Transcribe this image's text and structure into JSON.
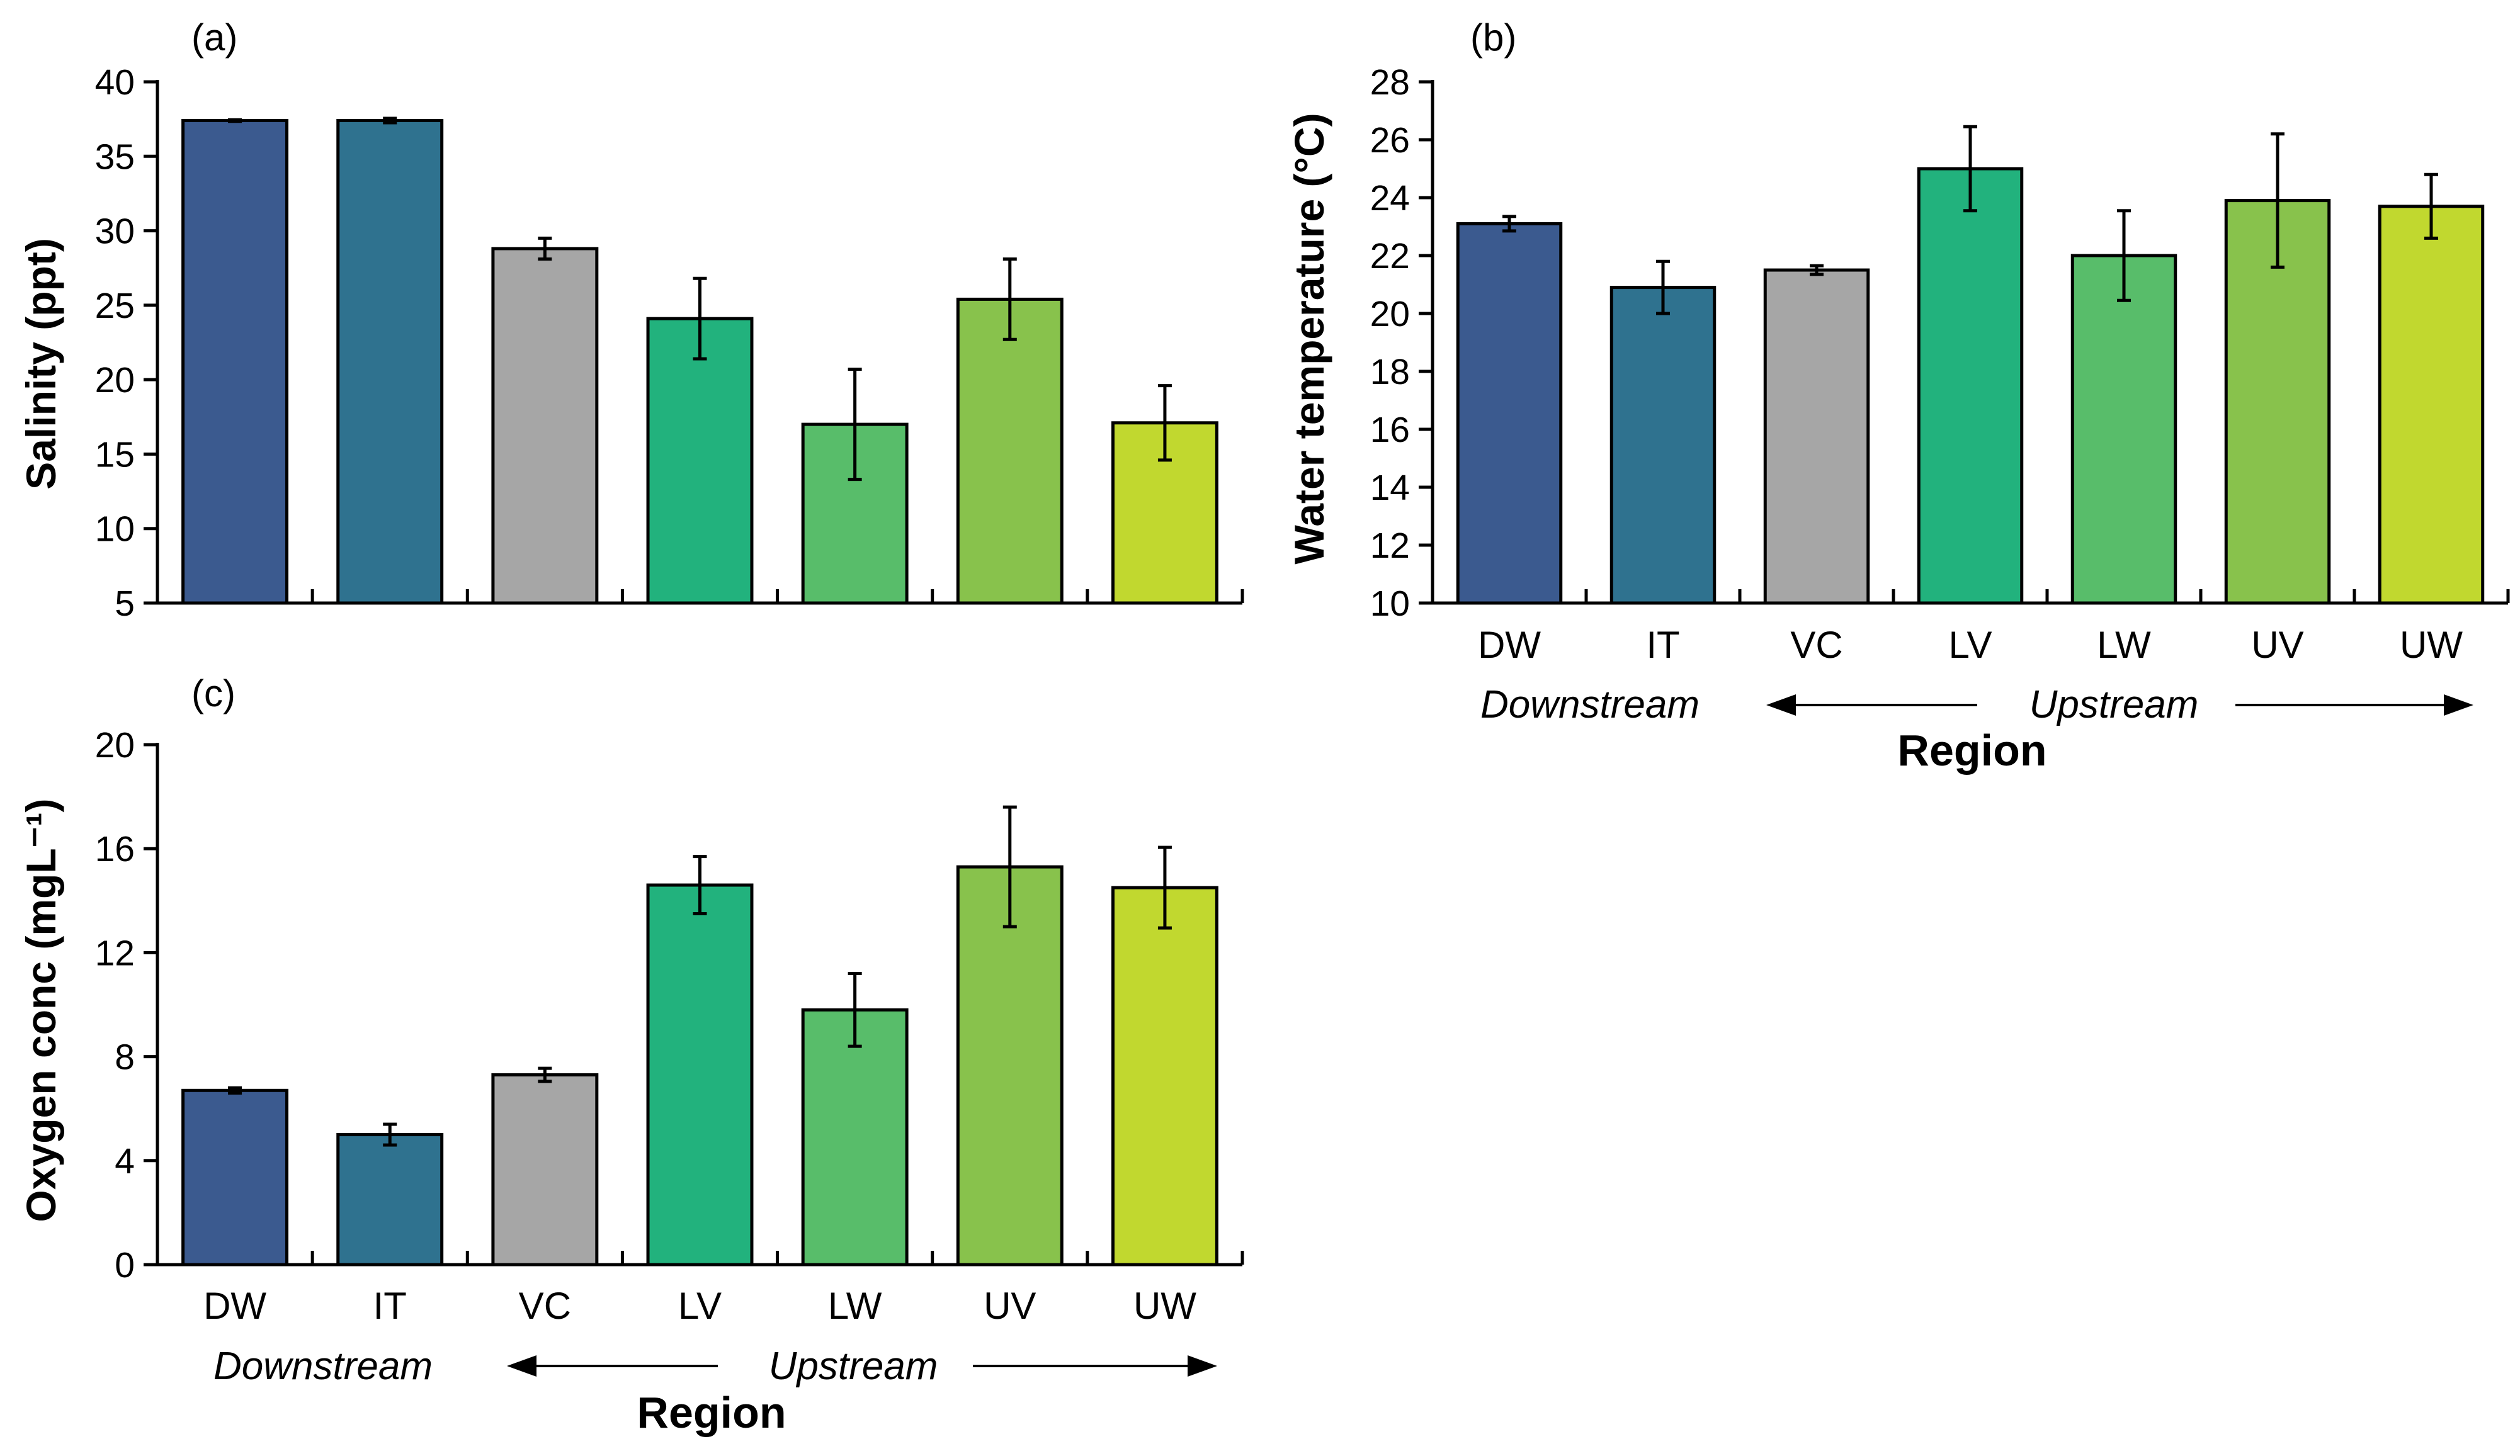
{
  "chart_data": [
    {
      "id": "a",
      "panel_label": "(a)",
      "type": "bar",
      "ylabel": "Salinity (ppt)",
      "ylim": [
        5,
        40
      ],
      "yticks": [
        5,
        10,
        15,
        20,
        25,
        30,
        35,
        40
      ],
      "categories": [
        "DW",
        "IT",
        "VC",
        "LV",
        "LW",
        "UV",
        "UW"
      ],
      "values": [
        37.4,
        37.4,
        28.8,
        24.1,
        17.0,
        25.4,
        17.1
      ],
      "errors": [
        0.05,
        0.15,
        0.7,
        2.7,
        3.7,
        2.7,
        2.5
      ],
      "show_category_labels": false
    },
    {
      "id": "b",
      "panel_label": "(b)",
      "type": "bar",
      "ylabel": "Water temperature (°C)",
      "ylim": [
        10,
        28
      ],
      "yticks": [
        10,
        12,
        14,
        16,
        18,
        20,
        22,
        24,
        26,
        28
      ],
      "categories": [
        "DW",
        "IT",
        "VC",
        "LV",
        "LW",
        "UV",
        "UW"
      ],
      "values": [
        23.1,
        20.9,
        21.5,
        25.0,
        22.0,
        23.9,
        23.7
      ],
      "errors": [
        0.25,
        0.9,
        0.15,
        1.45,
        1.55,
        2.3,
        1.1
      ],
      "show_category_labels": true,
      "xlabel": "Region",
      "direction": {
        "left": "Downstream",
        "right": "Upstream"
      }
    },
    {
      "id": "c",
      "panel_label": "(c)",
      "type": "bar",
      "ylabel": "Oxygen conc (mgL⁻¹)",
      "ylim": [
        0,
        20
      ],
      "yticks": [
        0,
        4,
        8,
        12,
        16,
        20
      ],
      "categories": [
        "DW",
        "IT",
        "VC",
        "LV",
        "LW",
        "UV",
        "UW"
      ],
      "values": [
        6.7,
        5.0,
        7.3,
        14.6,
        9.8,
        15.3,
        14.5
      ],
      "errors": [
        0.1,
        0.4,
        0.25,
        1.1,
        1.4,
        2.3,
        1.55
      ],
      "show_category_labels": true,
      "xlabel": "Region",
      "direction": {
        "left": "Downstream",
        "right": "Upstream"
      }
    }
  ],
  "colors": {
    "DW": "#3b5a8f",
    "IT": "#2f728f",
    "VC": "#a6a6a6",
    "LV": "#22b27d",
    "LW": "#58bd6a",
    "UV": "#88c24c",
    "UW": "#c1d82f"
  }
}
